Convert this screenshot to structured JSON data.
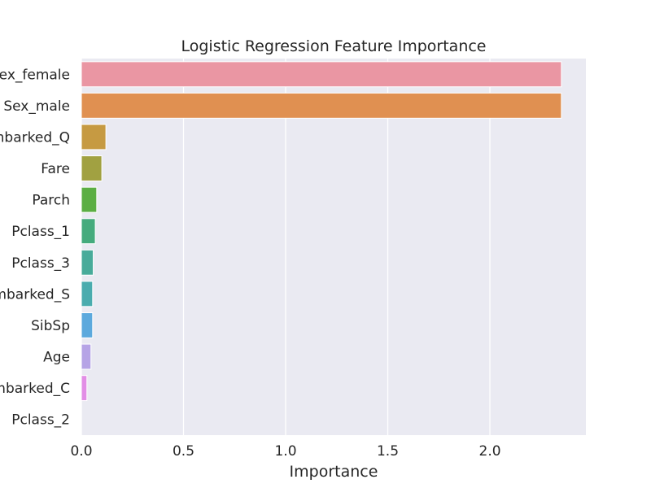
{
  "chart_data": {
    "type": "bar",
    "orientation": "horizontal",
    "title": "Logistic Regression Feature Importance",
    "xlabel": "Importance",
    "ylabel": "",
    "xlim": [
      0,
      2.47
    ],
    "xticks": [
      "0.0",
      "0.5",
      "1.0",
      "1.5",
      "2.0"
    ],
    "grid": true,
    "categories": [
      "Sex_female",
      "Sex_male",
      "Embarked_Q",
      "Fare",
      "Parch",
      "Pclass_1",
      "Pclass_3",
      "Embarked_S",
      "SibSp",
      "Age",
      "Embarked_C",
      "Pclass_2"
    ],
    "values": [
      2.35,
      2.35,
      0.12,
      0.1,
      0.075,
      0.068,
      0.058,
      0.055,
      0.055,
      0.047,
      0.027,
      0.0
    ],
    "colors": [
      "#ea96a3",
      "#e09051",
      "#c69a42",
      "#a1a141",
      "#5bae43",
      "#45ab7d",
      "#48ab9a",
      "#4aacae",
      "#5ca9dd",
      "#b6a4e6",
      "#e28ee6",
      "#ee94c6"
    ]
  }
}
